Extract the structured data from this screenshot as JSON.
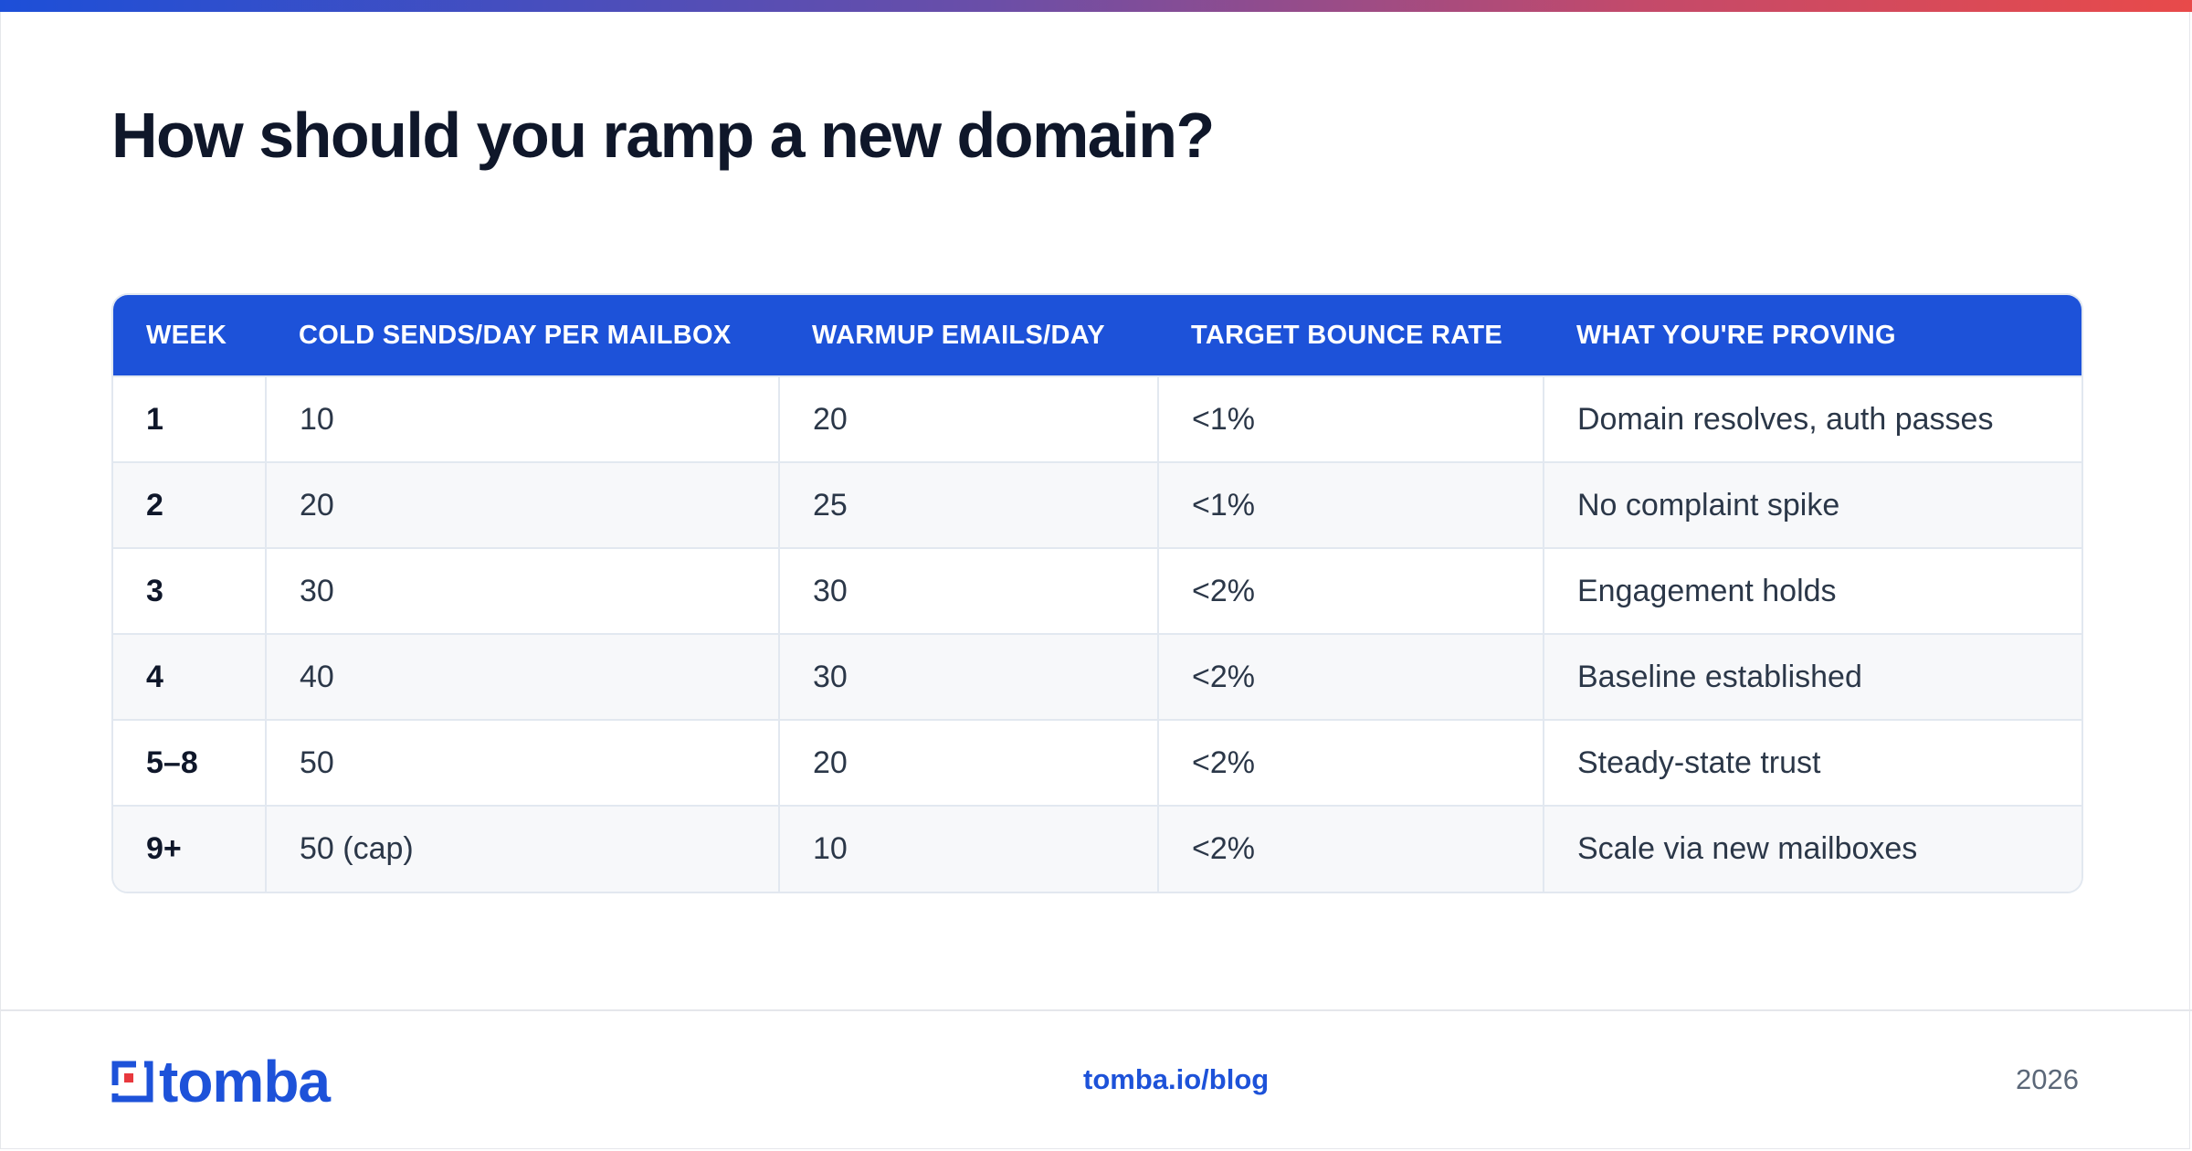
{
  "title": "How should you ramp a new domain?",
  "table": {
    "headers": [
      "WEEK",
      "COLD SENDS/DAY PER MAILBOX",
      "WARMUP EMAILS/DAY",
      "TARGET BOUNCE RATE",
      "WHAT YOU'RE PROVING"
    ],
    "rows": [
      [
        "1",
        "10",
        "20",
        "<1%",
        "Domain resolves, auth passes"
      ],
      [
        "2",
        "20",
        "25",
        "<1%",
        "No complaint spike"
      ],
      [
        "3",
        "30",
        "30",
        "<2%",
        "Engagement holds"
      ],
      [
        "4",
        "40",
        "30",
        "<2%",
        "Baseline established"
      ],
      [
        "5–8",
        "50",
        "20",
        "<2%",
        "Steady-state trust"
      ],
      [
        "9+",
        "50 (cap)",
        "10",
        "<2%",
        "Scale via new mailboxes"
      ]
    ]
  },
  "footer": {
    "logo_text": "tomba",
    "link": "tomba.io/blog",
    "year": "2026"
  },
  "colors": {
    "accent": "#1d52d9",
    "logo_red": "#e8383d"
  },
  "icons": {
    "logo": "tomba-logo-icon"
  }
}
